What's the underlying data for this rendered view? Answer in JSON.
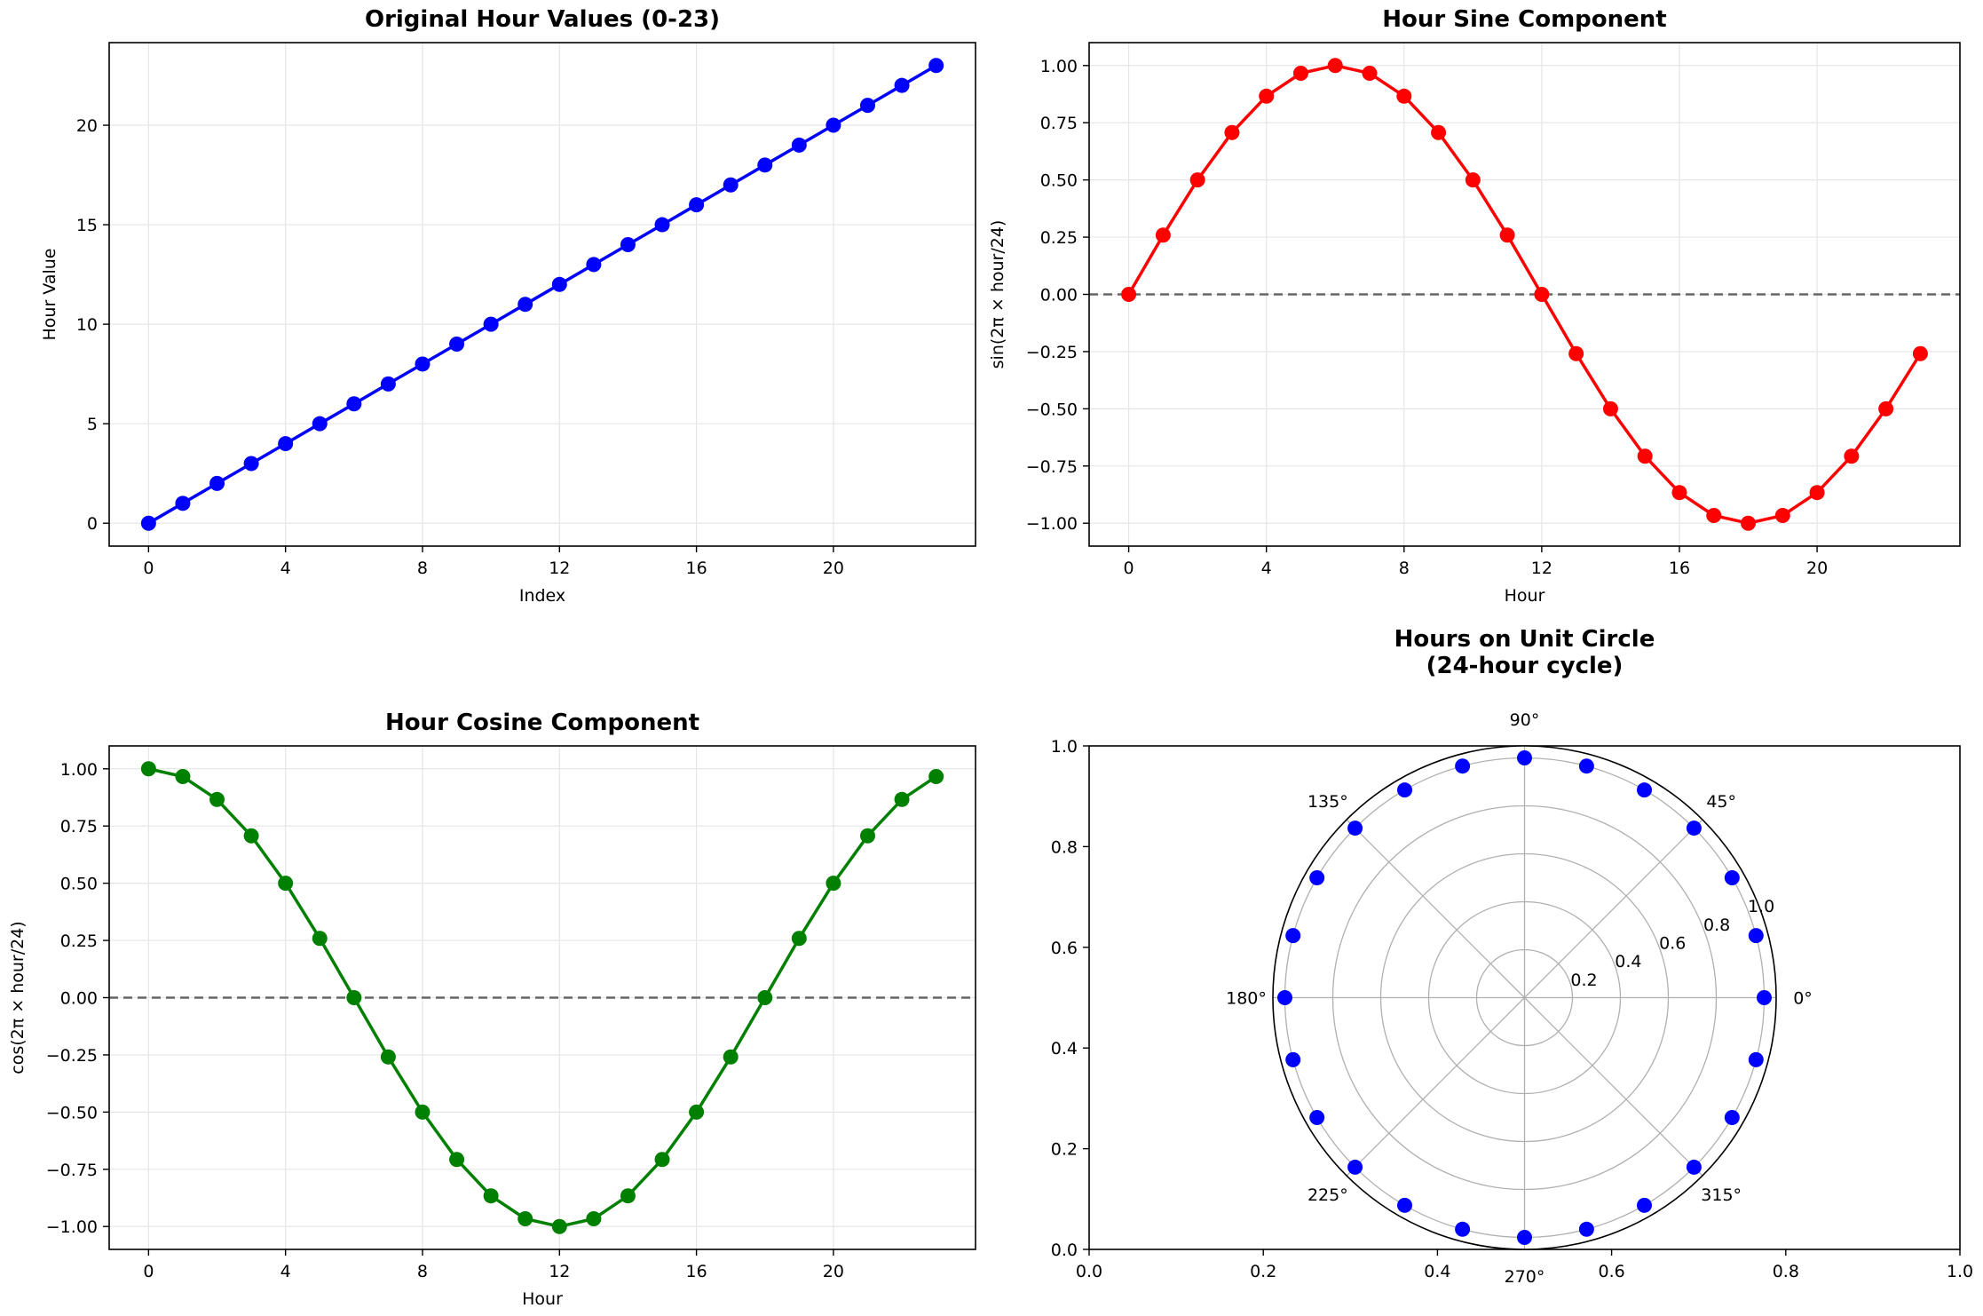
{
  "chart_data": [
    {
      "type": "line",
      "title": "Original Hour Values (0-23)",
      "xlabel": "Index",
      "ylabel": "Hour Value",
      "xlim": [
        -1.15,
        24.15
      ],
      "ylim": [
        -1.15,
        24.15
      ],
      "xticks": [
        0,
        4,
        8,
        12,
        16,
        20
      ],
      "yticks": [
        0,
        5,
        10,
        15,
        20
      ],
      "grid": true,
      "series": [
        {
          "color": "#0000ff",
          "x": [
            0,
            1,
            2,
            3,
            4,
            5,
            6,
            7,
            8,
            9,
            10,
            11,
            12,
            13,
            14,
            15,
            16,
            17,
            18,
            19,
            20,
            21,
            22,
            23
          ],
          "y": [
            0,
            1,
            2,
            3,
            4,
            5,
            6,
            7,
            8,
            9,
            10,
            11,
            12,
            13,
            14,
            15,
            16,
            17,
            18,
            19,
            20,
            21,
            22,
            23
          ]
        }
      ]
    },
    {
      "type": "line",
      "title": "Hour Sine Component",
      "xlabel": "Hour",
      "ylabel": "sin(2π × hour/24)",
      "xlim": [
        -1.15,
        24.15
      ],
      "ylim": [
        -1.1,
        1.1
      ],
      "xticks": [
        0,
        4,
        8,
        12,
        16,
        20
      ],
      "yticks": [
        1.0,
        0.75,
        0.5,
        0.25,
        0.0,
        -0.25,
        -0.5,
        -0.75,
        -1.0
      ],
      "ytick_labels": [
        "1.00",
        "0.75",
        "0.50",
        "0.25",
        "0.00",
        "−0.25",
        "−0.50",
        "−0.75",
        "−1.00"
      ],
      "reference_line_y": 0,
      "grid": true,
      "series": [
        {
          "color": "#ff0000",
          "x": [
            0,
            1,
            2,
            3,
            4,
            5,
            6,
            7,
            8,
            9,
            10,
            11,
            12,
            13,
            14,
            15,
            16,
            17,
            18,
            19,
            20,
            21,
            22,
            23
          ],
          "y": [
            0,
            0.259,
            0.5,
            0.707,
            0.866,
            0.966,
            1,
            0.966,
            0.866,
            0.707,
            0.5,
            0.259,
            0,
            -0.259,
            -0.5,
            -0.707,
            -0.866,
            -0.966,
            -1,
            -0.966,
            -0.866,
            -0.707,
            -0.5,
            -0.259
          ]
        }
      ]
    },
    {
      "type": "line",
      "title": "Hour Cosine Component",
      "xlabel": "Hour",
      "ylabel": "cos(2π × hour/24)",
      "xlim": [
        -1.15,
        24.15
      ],
      "ylim": [
        -1.1,
        1.1
      ],
      "xticks": [
        0,
        4,
        8,
        12,
        16,
        20
      ],
      "yticks": [
        1.0,
        0.75,
        0.5,
        0.25,
        0.0,
        -0.25,
        -0.5,
        -0.75,
        -1.0
      ],
      "ytick_labels": [
        "1.00",
        "0.75",
        "0.50",
        "0.25",
        "0.00",
        "−0.25",
        "−0.50",
        "−0.75",
        "−1.00"
      ],
      "reference_line_y": 0,
      "grid": true,
      "series": [
        {
          "color": "#008000",
          "x": [
            0,
            1,
            2,
            3,
            4,
            5,
            6,
            7,
            8,
            9,
            10,
            11,
            12,
            13,
            14,
            15,
            16,
            17,
            18,
            19,
            20,
            21,
            22,
            23
          ],
          "y": [
            1,
            0.966,
            0.866,
            0.707,
            0.5,
            0.259,
            0,
            -0.259,
            -0.5,
            -0.707,
            -0.866,
            -0.966,
            -1,
            -0.966,
            -0.866,
            -0.707,
            -0.5,
            -0.259,
            0,
            0.259,
            0.5,
            0.707,
            0.866,
            0.966
          ]
        }
      ]
    },
    {
      "type": "scatter",
      "title_lines": [
        "Hours on Unit Circle",
        "(24-hour cycle)"
      ],
      "projection": "polar",
      "color": "#0000ff",
      "hours": [
        0,
        1,
        2,
        3,
        4,
        5,
        6,
        7,
        8,
        9,
        10,
        11,
        12,
        13,
        14,
        15,
        16,
        17,
        18,
        19,
        20,
        21,
        22,
        23
      ],
      "radius": 1.0,
      "rlim": [
        0,
        1.05
      ],
      "rticks": [
        0.2,
        0.4,
        0.6,
        0.8,
        1.0
      ],
      "rtick_labels": [
        "0.2",
        "0.4",
        "0.6",
        "0.8",
        "1.0"
      ],
      "angle_labels": [
        "0°",
        "45°",
        "90°",
        "135°",
        "180°",
        "225°",
        "270°",
        "315°"
      ],
      "background_axis": {
        "xticks": [
          "0.0",
          "0.2",
          "0.4",
          "0.6",
          "0.8",
          "1.0"
        ],
        "yticks": [
          "0.0",
          "0.2",
          "0.4",
          "0.6",
          "0.8",
          "1.0"
        ]
      }
    }
  ]
}
